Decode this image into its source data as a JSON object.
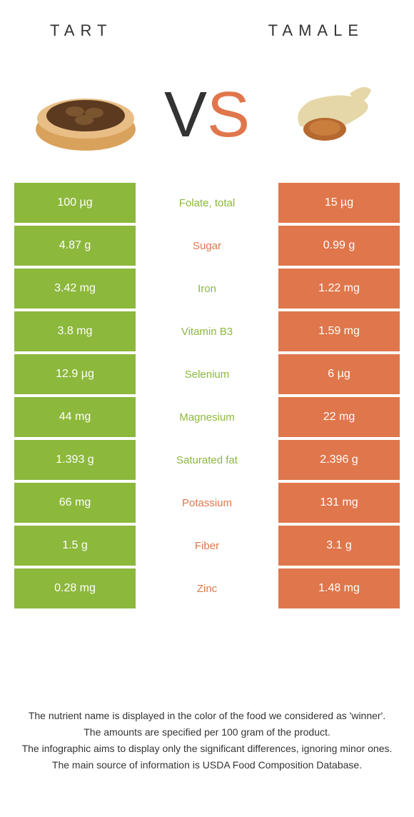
{
  "colors": {
    "left": "#8cb83c",
    "right": "#e0764b",
    "vs_s": "#e0764b",
    "vs_v": "#333333"
  },
  "header": {
    "left_title": "TART",
    "right_title": "TAMALE"
  },
  "vs": {
    "v": "V",
    "s": "S"
  },
  "rows": [
    {
      "left": "100 µg",
      "label": "Folate, total",
      "right": "15 µg",
      "winner": "left"
    },
    {
      "left": "4.87 g",
      "label": "Sugar",
      "right": "0.99 g",
      "winner": "right"
    },
    {
      "left": "3.42 mg",
      "label": "Iron",
      "right": "1.22 mg",
      "winner": "left"
    },
    {
      "left": "3.8 mg",
      "label": "Vitamin B3",
      "right": "1.59 mg",
      "winner": "left"
    },
    {
      "left": "12.9 µg",
      "label": "Selenium",
      "right": "6 µg",
      "winner": "left"
    },
    {
      "left": "44 mg",
      "label": "Magnesium",
      "right": "22 mg",
      "winner": "left"
    },
    {
      "left": "1.393 g",
      "label": "Saturated fat",
      "right": "2.396 g",
      "winner": "left"
    },
    {
      "left": "66 mg",
      "label": "Potassium",
      "right": "131 mg",
      "winner": "right"
    },
    {
      "left": "1.5 g",
      "label": "Fiber",
      "right": "3.1 g",
      "winner": "right"
    },
    {
      "left": "0.28 mg",
      "label": "Zinc",
      "right": "1.48 mg",
      "winner": "right"
    }
  ],
  "footer": {
    "line1": "The nutrient name is displayed in the color of the food we considered as 'winner'.",
    "line2": "The amounts are specified per 100 gram of the product.",
    "line3": "The infographic aims to display only the significant differences, ignoring minor ones.",
    "line4": "The main source of information is USDA Food Composition Database."
  }
}
